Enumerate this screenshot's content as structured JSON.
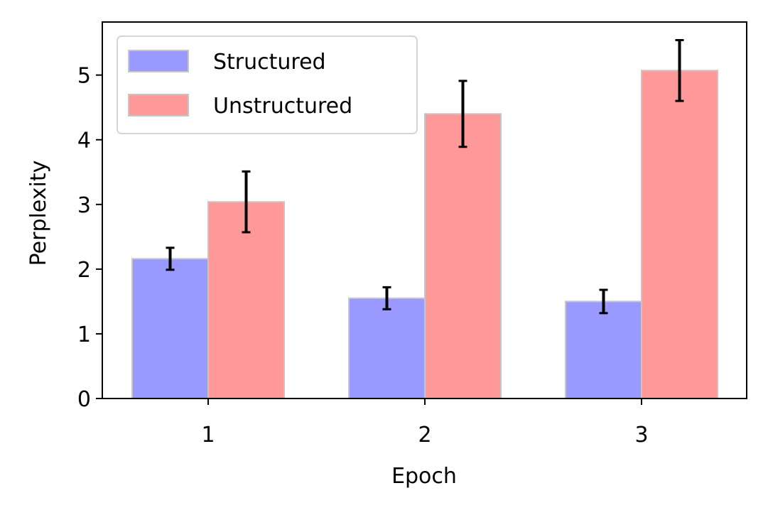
{
  "chart_data": {
    "type": "bar",
    "xlabel": "Epoch",
    "ylabel": "Perplexity",
    "categories": [
      "1",
      "2",
      "3"
    ],
    "yticks": [
      "0",
      "1",
      "2",
      "3",
      "4",
      "5"
    ],
    "ylim": [
      0,
      5.82
    ],
    "grid": false,
    "legend_position": "top-left",
    "series": [
      {
        "name": "Structured",
        "color": "#9999ff",
        "values": [
          2.16,
          1.55,
          1.5
        ],
        "errors": [
          0.17,
          0.17,
          0.18
        ]
      },
      {
        "name": "Unstructured",
        "color": "#ff9999",
        "values": [
          3.04,
          4.4,
          5.07
        ],
        "errors": [
          0.47,
          0.51,
          0.47
        ]
      }
    ]
  }
}
